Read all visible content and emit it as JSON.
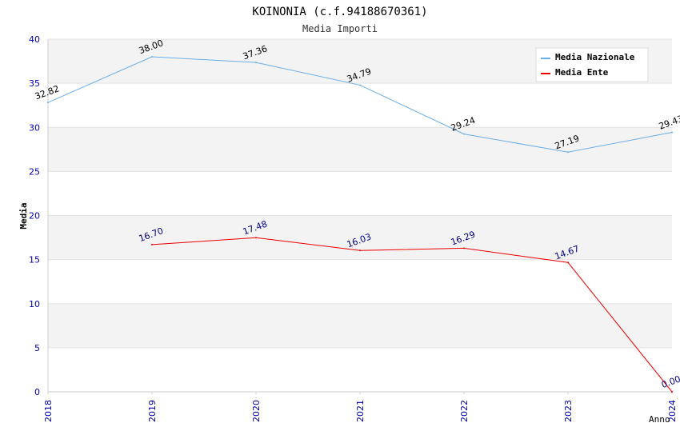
{
  "chart_data": {
    "type": "line",
    "title": "KOINONIA (c.f.94188670361)",
    "subtitle": "Media Importi",
    "xlabel": "Anno",
    "ylabel": "Media",
    "x": [
      "2018",
      "2019",
      "2020",
      "2021",
      "2022",
      "2023",
      "2024"
    ],
    "ylim": [
      0,
      40
    ],
    "yticks": [
      "0",
      "5",
      "10",
      "15",
      "20",
      "25",
      "30",
      "35",
      "40"
    ],
    "grid": true,
    "legend_position": "top-right",
    "series": [
      {
        "name": "Media Nazionale",
        "color": "#6aaee8",
        "label_color": "#000000",
        "values": [
          32.82,
          38.0,
          37.36,
          34.79,
          29.24,
          27.19,
          29.43
        ],
        "labels": [
          "32.82",
          "38.00",
          "37.36",
          "34.79",
          "29.24",
          "27.19",
          "29.43"
        ]
      },
      {
        "name": "Media Ente",
        "color": "#ee0000",
        "label_color": "#000080",
        "values": [
          null,
          16.7,
          17.48,
          16.03,
          16.29,
          14.67,
          0.0
        ],
        "labels": [
          null,
          "16.70",
          "17.48",
          "16.03",
          "16.29",
          "14.67",
          "0.00"
        ]
      }
    ]
  }
}
